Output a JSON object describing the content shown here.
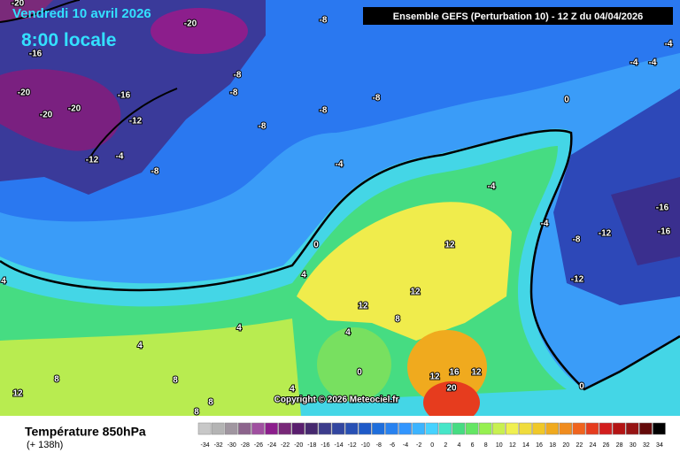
{
  "header": {
    "date": "Vendredi 10 avril 2026",
    "time": "8:00 locale",
    "model": "Ensemble GEFS  (Perturbation 10)  -  12 Z du 04/04/2026"
  },
  "footer": {
    "title": "Température 850hPa",
    "lead": "(+ 138h)",
    "copyright": "Copyright © 2026 Meteociel.fr"
  },
  "color_scale": {
    "ticks": [
      -34,
      -32,
      -30,
      -28,
      -26,
      -24,
      -22,
      -20,
      -18,
      -16,
      -14,
      -12,
      -10,
      -8,
      -6,
      -4,
      -2,
      0,
      2,
      4,
      6,
      8,
      10,
      12,
      14,
      16,
      18,
      20,
      22,
      24,
      26,
      28,
      30,
      32,
      34
    ],
    "colors": [
      "#c8c8c8",
      "#b4b4b4",
      "#a096a0",
      "#8c648c",
      "#a050a0",
      "#8c1e8c",
      "#782878",
      "#5a1e6e",
      "#46286e",
      "#3c3c8c",
      "#3246a0",
      "#2850b4",
      "#1e5ac8",
      "#1e6edc",
      "#2882f0",
      "#3296ff",
      "#3cb4ff",
      "#46d2ff",
      "#46e6c8",
      "#46dc82",
      "#64e664",
      "#96f050",
      "#c8f050",
      "#f0f050",
      "#f0dc3c",
      "#f0c828",
      "#f0aa1e",
      "#f08c1e",
      "#f0641e",
      "#e63c1e",
      "#d21e1e",
      "#b41414",
      "#961414",
      "#640a0a",
      "#000000"
    ]
  },
  "contour_labels": [
    -20,
    -20,
    -8,
    -16,
    -20,
    -20,
    -20,
    -16,
    -8,
    -8,
    -8,
    -8,
    -8,
    -12,
    -12,
    -4,
    -8,
    -4,
    -4,
    -4,
    -4,
    0,
    -4,
    -4,
    -8,
    -12,
    -16,
    -16,
    -12,
    0,
    4,
    4,
    0,
    4,
    4,
    8,
    8,
    12,
    12,
    12,
    12,
    12,
    16,
    12,
    20,
    0,
    4,
    8,
    4,
    8,
    8
  ]
}
